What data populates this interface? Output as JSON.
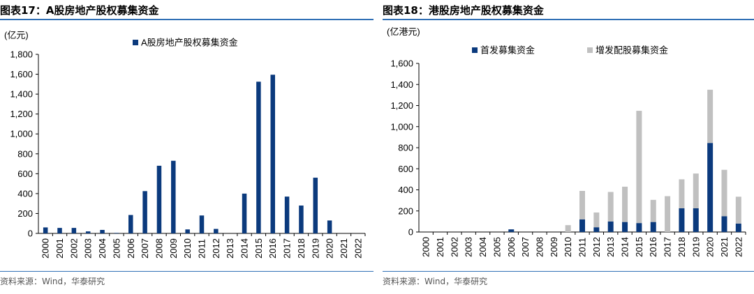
{
  "chart_data": [
    {
      "type": "bar",
      "figure_label": "图表17：",
      "title": "A股房地产股权募集资金",
      "unit": "(亿元)",
      "categories": [
        "2000",
        "2001",
        "2002",
        "2003",
        "2004",
        "2005",
        "2006",
        "2007",
        "2008",
        "2009",
        "2010",
        "2011",
        "2012",
        "2013",
        "2014",
        "2015",
        "2016",
        "2017",
        "2018",
        "2019",
        "2020",
        "2021",
        "2022"
      ],
      "series": [
        {
          "name": "A股房地产股权募集资金",
          "color": "#0b3a7d",
          "values": [
            60,
            55,
            55,
            20,
            35,
            5,
            185,
            425,
            680,
            730,
            40,
            180,
            45,
            0,
            400,
            1525,
            1595,
            370,
            280,
            560,
            130,
            0,
            0
          ]
        }
      ],
      "ylim": [
        0,
        1800
      ],
      "yticks": [
        "0",
        "200",
        "400",
        "600",
        "800",
        "1,000",
        "1,200",
        "1,400",
        "1,600",
        "1,800"
      ],
      "grid": false,
      "legend_position": "top"
    },
    {
      "type": "bar",
      "stacked": true,
      "figure_label": "图表18：",
      "title": "港股房地产股权募集资金",
      "unit": "(亿港元)",
      "categories": [
        "2000",
        "2001",
        "2002",
        "2003",
        "2004",
        "2005",
        "2006",
        "2007",
        "2008",
        "2009",
        "2010",
        "2011",
        "2012",
        "2013",
        "2014",
        "2015",
        "2016",
        "2017",
        "2018",
        "2019",
        "2020",
        "2021",
        "2022"
      ],
      "series": [
        {
          "name": "首发募集资金",
          "color": "#0b3a7d",
          "values": [
            0,
            0,
            0,
            0,
            0,
            0,
            25,
            0,
            0,
            0,
            0,
            120,
            45,
            100,
            95,
            85,
            95,
            0,
            225,
            225,
            845,
            150,
            80
          ]
        },
        {
          "name": "增发配股募集资金",
          "color": "#c0c0c0",
          "values": [
            0,
            0,
            0,
            0,
            0,
            0,
            0,
            0,
            0,
            0,
            65,
            270,
            140,
            280,
            335,
            1065,
            210,
            340,
            275,
            330,
            505,
            440,
            255
          ]
        }
      ],
      "ylim": [
        0,
        1600
      ],
      "yticks": [
        "0",
        "200",
        "400",
        "600",
        "800",
        "1,000",
        "1,200",
        "1,400",
        "1,600"
      ],
      "grid": false,
      "legend_position": "top"
    }
  ],
  "source_text": "资料来源：Wind，华泰研究"
}
